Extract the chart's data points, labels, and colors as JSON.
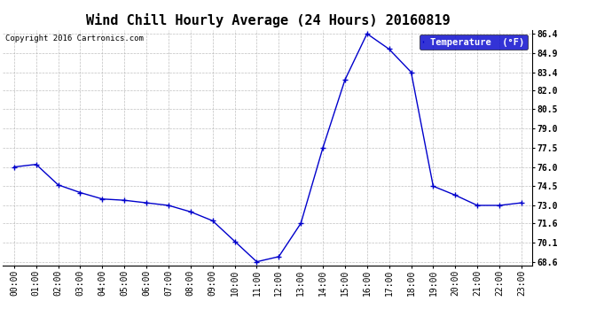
{
  "title": "Wind Chill Hourly Average (24 Hours) 20160819",
  "copyright": "Copyright 2016 Cartronics.com",
  "legend_label": "Temperature  (°F)",
  "x_labels": [
    "00:00",
    "01:00",
    "02:00",
    "03:00",
    "04:00",
    "05:00",
    "06:00",
    "07:00",
    "08:00",
    "09:00",
    "10:00",
    "11:00",
    "12:00",
    "13:00",
    "14:00",
    "15:00",
    "16:00",
    "17:00",
    "18:00",
    "19:00",
    "20:00",
    "21:00",
    "22:00",
    "23:00"
  ],
  "y_values": [
    76.0,
    76.2,
    74.6,
    74.0,
    73.5,
    73.4,
    73.2,
    73.0,
    72.5,
    71.8,
    70.2,
    68.6,
    69.0,
    71.6,
    77.5,
    82.8,
    86.4,
    85.2,
    83.4,
    74.5,
    73.8,
    73.0,
    73.0,
    73.2
  ],
  "ylim_min": 68.3,
  "ylim_max": 86.7,
  "yticks": [
    68.6,
    70.1,
    71.6,
    73.0,
    74.5,
    76.0,
    77.5,
    79.0,
    80.5,
    82.0,
    83.4,
    84.9,
    86.4
  ],
  "line_color": "#0000cc",
  "marker": "+",
  "marker_size": 4,
  "bg_color": "#ffffff",
  "grid_color": "#b0b0b0",
  "title_fontsize": 11,
  "tick_fontsize": 7,
  "copyright_fontsize": 6.5,
  "legend_bg": "#0000cc",
  "legend_fg": "#ffffff",
  "legend_fontsize": 7.5
}
